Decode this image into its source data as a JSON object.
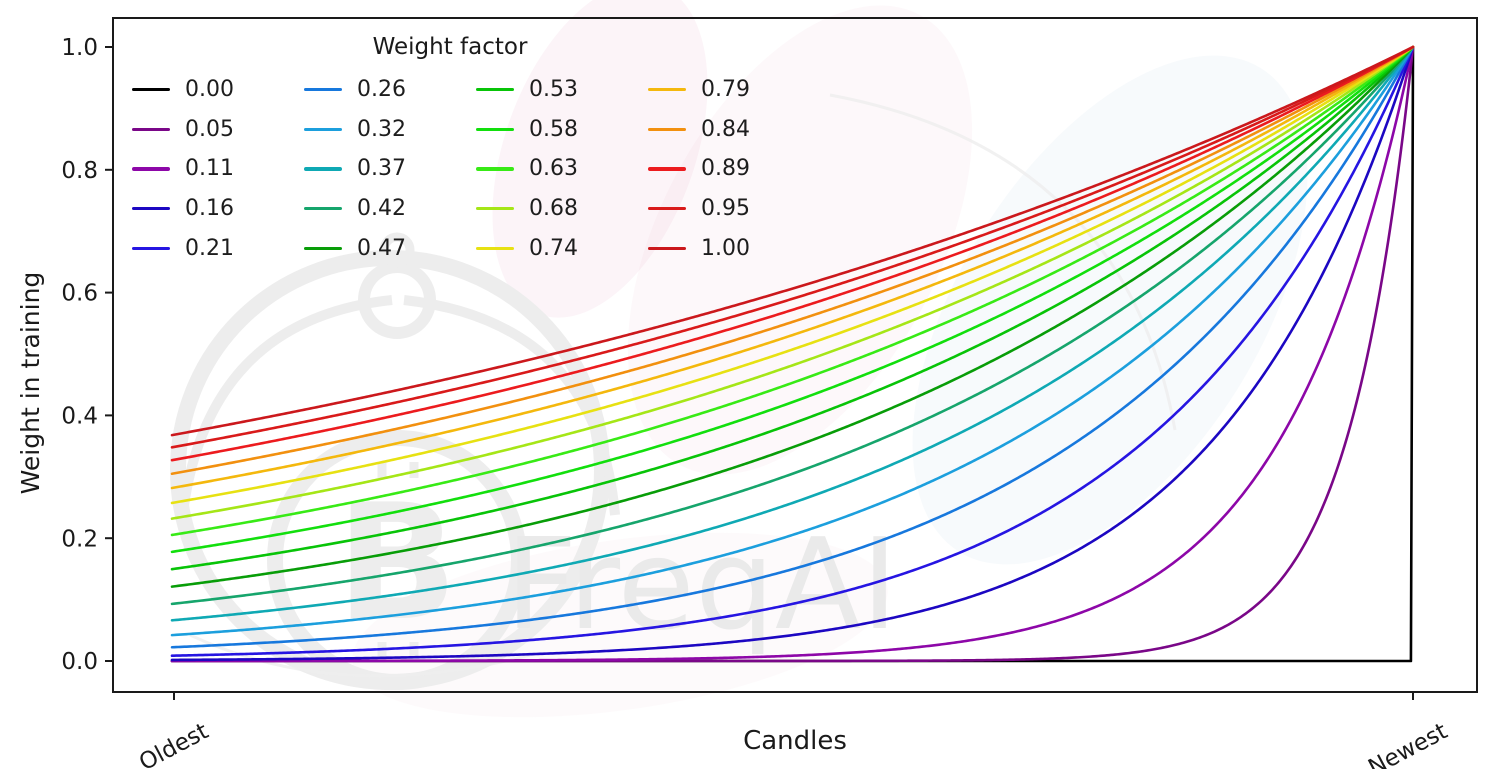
{
  "figure": {
    "background": "#ffffff",
    "frame_color": "#1a1a1a",
    "tick_text_color": "#1a1a1a"
  },
  "watermark": {
    "brand_text": "FreqAI",
    "bitcoin_symbol": "B",
    "gray": "#ededed",
    "pink": "#e8b4cc",
    "blue": "#bdd8ea"
  },
  "chart_data": {
    "type": "line",
    "title": "",
    "xlabel": "Candles",
    "ylabel": "Weight in training",
    "x_tick_labels": [
      "Oldest",
      "Newest"
    ],
    "y_ticks": [
      0.0,
      0.2,
      0.4,
      0.6,
      0.8,
      1.0
    ],
    "ylim": [
      0,
      1
    ],
    "grid": false,
    "legend_title": "Weight factor",
    "legend_position": "upper-left",
    "legend_columns": 4,
    "formula": "weight(t) = exp(-(1 - t) / w) for t in [0,1] from Oldest to Newest; w = 0 gives weight 0 for all candles except the newest which is 1",
    "series": [
      {
        "label": "0.00",
        "w": 0.0,
        "color": "#000000",
        "start_value": 0.0,
        "end_value": 1.0
      },
      {
        "label": "0.05",
        "w": 0.052632,
        "color": "#7a0788",
        "start_value": 0.0,
        "end_value": 1.0
      },
      {
        "label": "0.11",
        "w": 0.105263,
        "color": "#8d07a8",
        "start_value": 0.0,
        "end_value": 1.0
      },
      {
        "label": "0.16",
        "w": 0.157895,
        "color": "#1c07c2",
        "start_value": 0.002,
        "end_value": 1.0
      },
      {
        "label": "0.21",
        "w": 0.210526,
        "color": "#2615e2",
        "start_value": 0.009,
        "end_value": 1.0
      },
      {
        "label": "0.26",
        "w": 0.263158,
        "color": "#1778dd",
        "start_value": 0.022,
        "end_value": 1.0
      },
      {
        "label": "0.32",
        "w": 0.315789,
        "color": "#1c9fdd",
        "start_value": 0.042,
        "end_value": 1.0
      },
      {
        "label": "0.37",
        "w": 0.368421,
        "color": "#0fa9b4",
        "start_value": 0.066,
        "end_value": 1.0
      },
      {
        "label": "0.42",
        "w": 0.421053,
        "color": "#16a56c",
        "start_value": 0.093,
        "end_value": 1.0
      },
      {
        "label": "0.47",
        "w": 0.473684,
        "color": "#089d08",
        "start_value": 0.121,
        "end_value": 1.0
      },
      {
        "label": "0.53",
        "w": 0.526316,
        "color": "#08c408",
        "start_value": 0.15,
        "end_value": 1.0
      },
      {
        "label": "0.58",
        "w": 0.578947,
        "color": "#12df0d",
        "start_value": 0.178,
        "end_value": 1.0
      },
      {
        "label": "0.63",
        "w": 0.631579,
        "color": "#38ea16",
        "start_value": 0.205,
        "end_value": 1.0
      },
      {
        "label": "0.68",
        "w": 0.684211,
        "color": "#a5e617",
        "start_value": 0.232,
        "end_value": 1.0
      },
      {
        "label": "0.74",
        "w": 0.736842,
        "color": "#e7e112",
        "start_value": 0.257,
        "end_value": 1.0
      },
      {
        "label": "0.79",
        "w": 0.789474,
        "color": "#f4b80d",
        "start_value": 0.282,
        "end_value": 1.0
      },
      {
        "label": "0.84",
        "w": 0.842105,
        "color": "#f2900f",
        "start_value": 0.305,
        "end_value": 1.0
      },
      {
        "label": "0.89",
        "w": 0.894737,
        "color": "#ec1b1e",
        "start_value": 0.327,
        "end_value": 1.0
      },
      {
        "label": "0.95",
        "w": 0.947368,
        "color": "#d91a1a",
        "start_value": 0.348,
        "end_value": 1.0
      },
      {
        "label": "1.00",
        "w": 1.0,
        "color": "#cb181c",
        "start_value": 0.368,
        "end_value": 1.0
      }
    ]
  }
}
